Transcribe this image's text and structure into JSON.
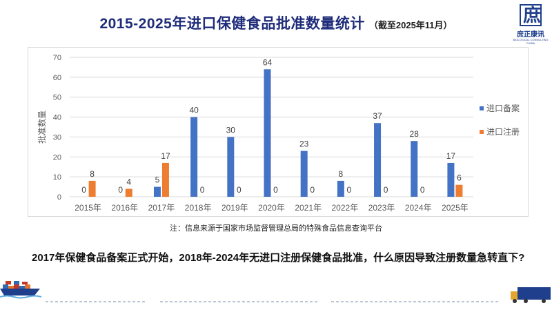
{
  "title": "2015-2025年进口保健食品批准数量统计",
  "subtitle": "（截至2025年11月）",
  "logo": {
    "glyph": "庶",
    "name": "庶正康讯",
    "tagline": "BIOLOGICAL CONSULTING CHINA"
  },
  "note": "注：信息来源于国家市场监督管理总局的特殊食品信息查询平台",
  "question": "2017年保健食品备案正式开始，2018年-2024年无进口注册保健食品批准，什么原因导致注册数量急转直下?",
  "colors": {
    "title": "#1f2c7a",
    "series_filing": "#4472c4",
    "series_registration": "#ed7d31",
    "gridline": "#d9d9d9",
    "axis_text": "#595959"
  },
  "chart_data": {
    "type": "bar",
    "categories": [
      "2015年",
      "2016年",
      "2017年",
      "2018年",
      "2019年",
      "2020年",
      "2021年",
      "2022年",
      "2023年",
      "2024年",
      "2025年"
    ],
    "series": [
      {
        "name": "进口备案",
        "values": [
          0,
          0,
          5,
          40,
          30,
          64,
          23,
          8,
          37,
          28,
          17
        ],
        "color": "#4472c4"
      },
      {
        "name": "进口注册",
        "values": [
          8,
          4,
          17,
          0,
          0,
          0,
          0,
          0,
          0,
          0,
          6
        ],
        "color": "#ed7d31"
      }
    ],
    "ylabel": "批准数量",
    "ylim": [
      0,
      70
    ],
    "yticks": [
      0,
      10,
      20,
      30,
      40,
      50,
      60,
      70
    ],
    "grid": true,
    "legend": "right"
  }
}
